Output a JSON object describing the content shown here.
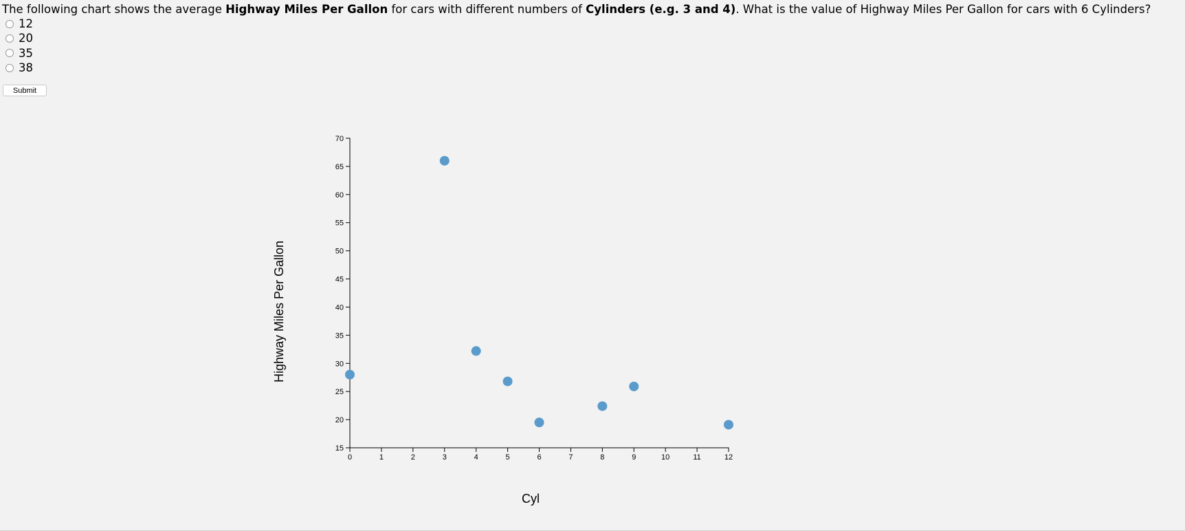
{
  "question": {
    "parts": [
      {
        "text": "The following chart shows the average ",
        "bold": false
      },
      {
        "text": "Highway Miles Per Gallon",
        "bold": true
      },
      {
        "text": " for cars with different numbers of ",
        "bold": false
      },
      {
        "text": "Cylinders (e.g. 3 and 4)",
        "bold": true
      },
      {
        "text": ". What is the value of Highway Miles Per Gallon for cars with 6 Cylinders?",
        "bold": false
      }
    ]
  },
  "options": [
    "12",
    "20",
    "35",
    "38"
  ],
  "submit_label": "Submit",
  "chart_data": {
    "type": "scatter",
    "xlabel": "Cyl",
    "ylabel": "Highway Miles Per Gallon",
    "xlim": [
      0,
      12
    ],
    "ylim": [
      15,
      70
    ],
    "x_ticks": [
      0,
      1,
      2,
      3,
      4,
      5,
      6,
      7,
      8,
      9,
      10,
      11,
      12
    ],
    "y_ticks": [
      15,
      20,
      25,
      30,
      35,
      40,
      45,
      50,
      55,
      60,
      65,
      70
    ],
    "points": [
      {
        "x": 0,
        "y": 28
      },
      {
        "x": 3,
        "y": 66
      },
      {
        "x": 4,
        "y": 32.2
      },
      {
        "x": 5,
        "y": 26.8
      },
      {
        "x": 6,
        "y": 19.5
      },
      {
        "x": 8,
        "y": 22.4
      },
      {
        "x": 9,
        "y": 25.9
      },
      {
        "x": 12,
        "y": 19.1
      }
    ],
    "point_color": "#5b9bcb",
    "grid": false
  }
}
